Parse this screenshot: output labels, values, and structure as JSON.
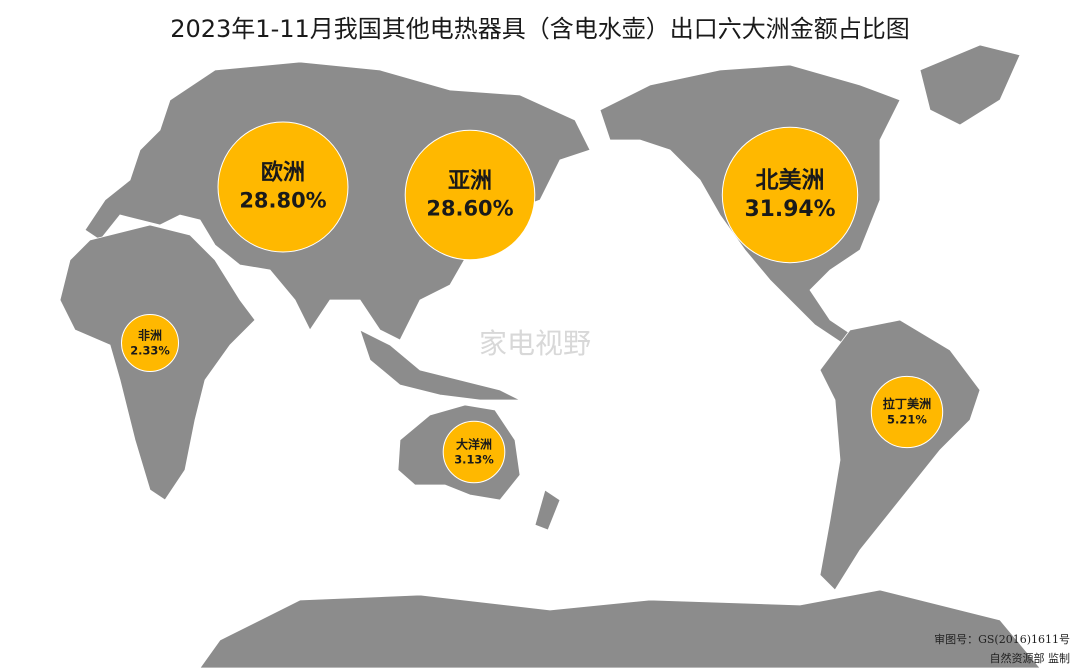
{
  "chart_data": {
    "type": "bubble_map",
    "title": "2023年1-11月我国其他电热器具（含电水壶）出口六大洲金额占比图",
    "categories": [
      "欧洲",
      "亚洲",
      "北美洲",
      "非洲",
      "大洋洲",
      "拉丁美洲"
    ],
    "values": [
      28.8,
      28.6,
      31.94,
      2.33,
      3.13,
      5.21
    ],
    "value_labels": [
      "28.80%",
      "28.60%",
      "31.94%",
      "2.33%",
      "3.13%",
      "5.21%"
    ],
    "color": "#ffb800",
    "watermark": "家电视野",
    "map_approval": "审图号：GS(2016)1611号",
    "map_supervisor": "自然资源部 监制"
  }
}
